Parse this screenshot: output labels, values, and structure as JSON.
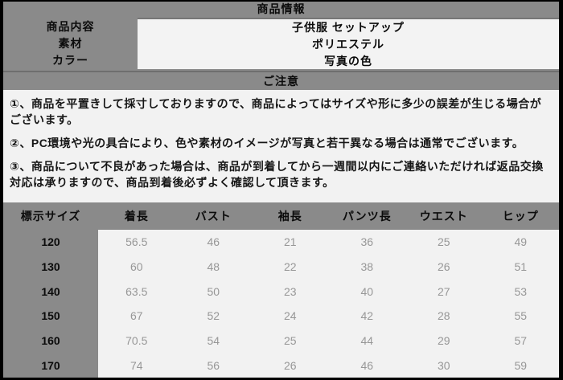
{
  "header": {
    "title": "商品情報"
  },
  "product_info": {
    "rows": [
      {
        "label": "商品内容",
        "value": "子供服 セットアップ"
      },
      {
        "label": "素材",
        "value": "ポリエステル"
      },
      {
        "label": "カラー",
        "value": "写真の色"
      }
    ]
  },
  "notice": {
    "title": "ご注意",
    "notes": [
      "①、商品を平置きして採寸しておりますので、商品によってはサイズや形に多少の誤差が生じる場合がございます。",
      "②、PC環境や光の具合により、色や素材のイメージが写真と若干異なる場合は通常でございます。",
      "③、商品について不良があった場合は、商品が到着してから一週間以内にご連絡いただければ返品交換対応は承りますので、商品到着後必ずよく確認して頂きます。"
    ]
  },
  "size_table": {
    "headers": [
      "標示サイズ",
      "着長",
      "バスト",
      "袖長",
      "パンツ長",
      "ウエスト",
      "ヒップ"
    ],
    "rows": [
      {
        "size": "120",
        "values": [
          "56.5",
          "46",
          "21",
          "36",
          "25",
          "49"
        ]
      },
      {
        "size": "130",
        "values": [
          "60",
          "48",
          "22",
          "38",
          "26",
          "51"
        ]
      },
      {
        "size": "140",
        "values": [
          "63.5",
          "50",
          "23",
          "40",
          "27",
          "53"
        ]
      },
      {
        "size": "150",
        "values": [
          "67",
          "52",
          "24",
          "42",
          "28",
          "55"
        ]
      },
      {
        "size": "160",
        "values": [
          "70.5",
          "54",
          "25",
          "44",
          "29",
          "57"
        ]
      },
      {
        "size": "170",
        "values": [
          "74",
          "56",
          "26",
          "46",
          "30",
          "59"
        ]
      }
    ]
  },
  "colors": {
    "band_gray": "#8a8a8a",
    "panel_light": "#f2f2f2",
    "values_panel": "#f3f3f3",
    "text_black": "#0b0b0b",
    "number_gray": "#979797",
    "outer_border": "#000000",
    "divider_dark": "#6e6e6e"
  }
}
